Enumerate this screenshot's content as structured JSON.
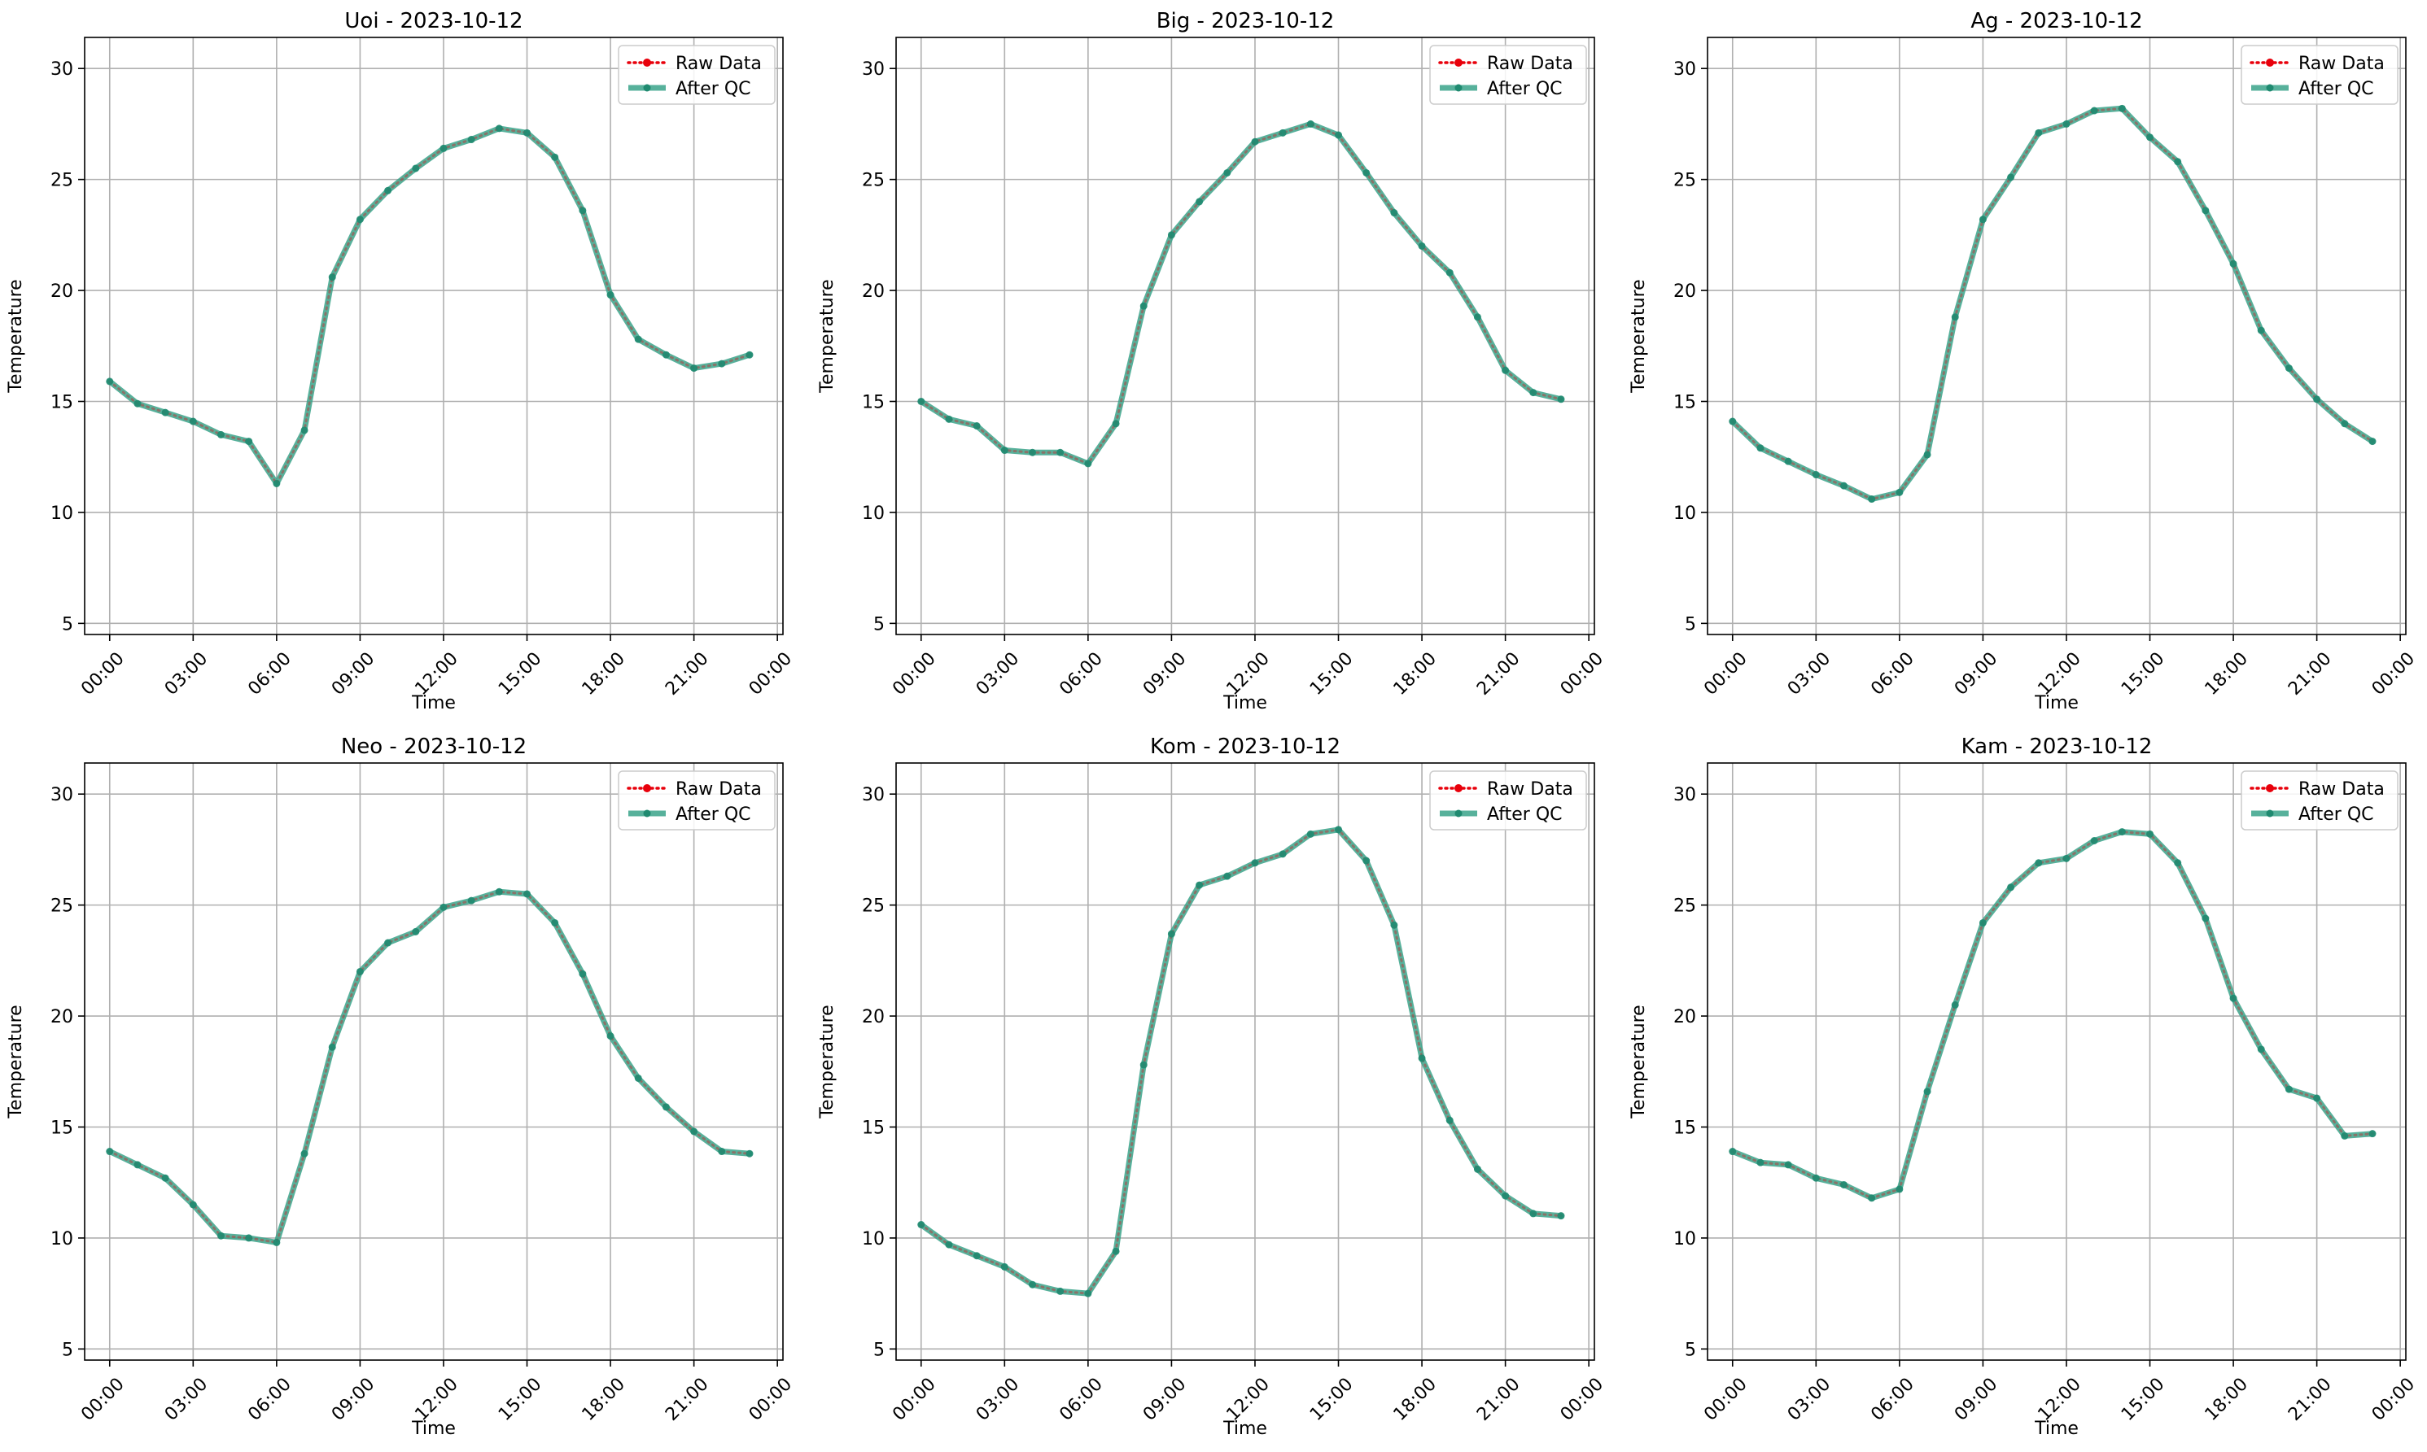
{
  "colors": {
    "raw": "#e8000b",
    "qc": "#3aa38a",
    "qc_marker": "#1f8a70",
    "grid": "#b0b0b0",
    "axes": "#000000"
  },
  "chart_data": [
    {
      "type": "line",
      "title": "Uoi - 2023-10-12",
      "xlabel": "Time",
      "ylabel": "Temperature",
      "ylim": [
        4.5,
        31.4
      ],
      "yticks": [
        5,
        10,
        15,
        20,
        25,
        30
      ],
      "xlim": [
        -0.9,
        24.2
      ],
      "x_tick_positions": [
        0,
        3,
        6,
        9,
        12,
        15,
        18,
        21,
        24
      ],
      "x_tick_labels": [
        "00:00",
        "03:00",
        "06:00",
        "09:00",
        "12:00",
        "15:00",
        "18:00",
        "21:00",
        "00:00"
      ],
      "grid": true,
      "legend_position": "top-right",
      "series": [
        {
          "name": "Raw Data",
          "style": "dotted",
          "x": [
            0,
            1,
            2,
            3,
            4,
            5,
            6,
            7,
            8,
            9,
            10,
            11,
            12,
            13,
            14,
            15,
            16,
            17,
            18,
            19,
            20,
            21,
            22,
            23
          ],
          "values": [
            15.9,
            14.9,
            14.5,
            14.1,
            13.5,
            13.2,
            11.3,
            13.7,
            20.6,
            23.2,
            24.5,
            25.5,
            26.4,
            26.8,
            27.3,
            27.1,
            26.0,
            23.6,
            19.8,
            17.8,
            17.1,
            16.5,
            16.7,
            17.1
          ]
        },
        {
          "name": "After QC",
          "style": "solid",
          "x": [
            0,
            1,
            2,
            3,
            4,
            5,
            6,
            7,
            8,
            9,
            10,
            11,
            12,
            13,
            14,
            15,
            16,
            17,
            18,
            19,
            20,
            21,
            22,
            23
          ],
          "values": [
            15.9,
            14.9,
            14.5,
            14.1,
            13.5,
            13.2,
            11.3,
            13.7,
            20.6,
            23.2,
            24.5,
            25.5,
            26.4,
            26.8,
            27.3,
            27.1,
            26.0,
            23.6,
            19.8,
            17.8,
            17.1,
            16.5,
            16.7,
            17.1
          ]
        }
      ]
    },
    {
      "type": "line",
      "title": "Big - 2023-10-12",
      "xlabel": "Time",
      "ylabel": "Temperature",
      "ylim": [
        4.5,
        31.4
      ],
      "yticks": [
        5,
        10,
        15,
        20,
        25,
        30
      ],
      "xlim": [
        -0.9,
        24.2
      ],
      "x_tick_positions": [
        0,
        3,
        6,
        9,
        12,
        15,
        18,
        21,
        24
      ],
      "x_tick_labels": [
        "00:00",
        "03:00",
        "06:00",
        "09:00",
        "12:00",
        "15:00",
        "18:00",
        "21:00",
        "00:00"
      ],
      "grid": true,
      "legend_position": "top-right",
      "series": [
        {
          "name": "Raw Data",
          "style": "dotted",
          "x": [
            0,
            1,
            2,
            3,
            4,
            5,
            6,
            7,
            8,
            9,
            10,
            11,
            12,
            13,
            14,
            15,
            16,
            17,
            18,
            19,
            20,
            21,
            22,
            23
          ],
          "values": [
            15.0,
            14.2,
            13.9,
            12.8,
            12.7,
            12.7,
            12.2,
            14.0,
            19.3,
            22.5,
            24.0,
            25.3,
            26.7,
            27.1,
            27.5,
            27.0,
            25.3,
            23.5,
            22.0,
            20.8,
            18.8,
            16.4,
            15.4,
            15.1
          ]
        },
        {
          "name": "After QC",
          "style": "solid",
          "x": [
            0,
            1,
            2,
            3,
            4,
            5,
            6,
            7,
            8,
            9,
            10,
            11,
            12,
            13,
            14,
            15,
            16,
            17,
            18,
            19,
            20,
            21,
            22,
            23
          ],
          "values": [
            15.0,
            14.2,
            13.9,
            12.8,
            12.7,
            12.7,
            12.2,
            14.0,
            19.3,
            22.5,
            24.0,
            25.3,
            26.7,
            27.1,
            27.5,
            27.0,
            25.3,
            23.5,
            22.0,
            20.8,
            18.8,
            16.4,
            15.4,
            15.1
          ]
        }
      ]
    },
    {
      "type": "line",
      "title": "Ag - 2023-10-12",
      "xlabel": "Time",
      "ylabel": "Temperature",
      "ylim": [
        4.5,
        31.4
      ],
      "yticks": [
        5,
        10,
        15,
        20,
        25,
        30
      ],
      "xlim": [
        -0.9,
        24.2
      ],
      "x_tick_positions": [
        0,
        3,
        6,
        9,
        12,
        15,
        18,
        21,
        24
      ],
      "x_tick_labels": [
        "00:00",
        "03:00",
        "06:00",
        "09:00",
        "12:00",
        "15:00",
        "18:00",
        "21:00",
        "00:00"
      ],
      "grid": true,
      "legend_position": "top-right",
      "series": [
        {
          "name": "Raw Data",
          "style": "dotted",
          "x": [
            0,
            1,
            2,
            3,
            4,
            5,
            6,
            7,
            8,
            9,
            10,
            11,
            12,
            13,
            14,
            15,
            16,
            17,
            18,
            19,
            20,
            21,
            22,
            23
          ],
          "values": [
            14.1,
            12.9,
            12.3,
            11.7,
            11.2,
            10.6,
            10.9,
            12.6,
            18.8,
            23.2,
            25.1,
            27.1,
            27.5,
            28.1,
            28.2,
            26.9,
            25.8,
            23.6,
            21.2,
            18.2,
            16.5,
            15.1,
            14.0,
            13.2
          ]
        },
        {
          "name": "After QC",
          "style": "solid",
          "x": [
            0,
            1,
            2,
            3,
            4,
            5,
            6,
            7,
            8,
            9,
            10,
            11,
            12,
            13,
            14,
            15,
            16,
            17,
            18,
            19,
            20,
            21,
            22,
            23
          ],
          "values": [
            14.1,
            12.9,
            12.3,
            11.7,
            11.2,
            10.6,
            10.9,
            12.6,
            18.8,
            23.2,
            25.1,
            27.1,
            27.5,
            28.1,
            28.2,
            26.9,
            25.8,
            23.6,
            21.2,
            18.2,
            16.5,
            15.1,
            14.0,
            13.2
          ]
        }
      ]
    },
    {
      "type": "line",
      "title": "Neo - 2023-10-12",
      "xlabel": "Time",
      "ylabel": "Temperature",
      "ylim": [
        4.5,
        31.4
      ],
      "yticks": [
        5,
        10,
        15,
        20,
        25,
        30
      ],
      "xlim": [
        -0.9,
        24.2
      ],
      "x_tick_positions": [
        0,
        3,
        6,
        9,
        12,
        15,
        18,
        21,
        24
      ],
      "x_tick_labels": [
        "00:00",
        "03:00",
        "06:00",
        "09:00",
        "12:00",
        "15:00",
        "18:00",
        "21:00",
        "00:00"
      ],
      "grid": true,
      "legend_position": "top-right",
      "series": [
        {
          "name": "Raw Data",
          "style": "dotted",
          "x": [
            0,
            1,
            2,
            3,
            4,
            5,
            6,
            7,
            8,
            9,
            10,
            11,
            12,
            13,
            14,
            15,
            16,
            17,
            18,
            19,
            20,
            21,
            22,
            23
          ],
          "values": [
            13.9,
            13.3,
            12.7,
            11.5,
            10.1,
            10.0,
            9.8,
            13.8,
            18.6,
            22.0,
            23.3,
            23.8,
            24.9,
            25.2,
            25.6,
            25.5,
            24.2,
            21.9,
            19.1,
            17.2,
            15.9,
            14.8,
            13.9,
            13.8
          ]
        },
        {
          "name": "After QC",
          "style": "solid",
          "x": [
            0,
            1,
            2,
            3,
            4,
            5,
            6,
            7,
            8,
            9,
            10,
            11,
            12,
            13,
            14,
            15,
            16,
            17,
            18,
            19,
            20,
            21,
            22,
            23
          ],
          "values": [
            13.9,
            13.3,
            12.7,
            11.5,
            10.1,
            10.0,
            9.8,
            13.8,
            18.6,
            22.0,
            23.3,
            23.8,
            24.9,
            25.2,
            25.6,
            25.5,
            24.2,
            21.9,
            19.1,
            17.2,
            15.9,
            14.8,
            13.9,
            13.8
          ]
        }
      ]
    },
    {
      "type": "line",
      "title": "Kom - 2023-10-12",
      "xlabel": "Time",
      "ylabel": "Temperature",
      "ylim": [
        4.5,
        31.4
      ],
      "yticks": [
        5,
        10,
        15,
        20,
        25,
        30
      ],
      "xlim": [
        -0.9,
        24.2
      ],
      "x_tick_positions": [
        0,
        3,
        6,
        9,
        12,
        15,
        18,
        21,
        24
      ],
      "x_tick_labels": [
        "00:00",
        "03:00",
        "06:00",
        "09:00",
        "12:00",
        "15:00",
        "18:00",
        "21:00",
        "00:00"
      ],
      "grid": true,
      "legend_position": "top-right",
      "series": [
        {
          "name": "Raw Data",
          "style": "dotted",
          "x": [
            0,
            1,
            2,
            3,
            4,
            5,
            6,
            7,
            8,
            9,
            10,
            11,
            12,
            13,
            14,
            15,
            16,
            17,
            18,
            19,
            20,
            21,
            22,
            23
          ],
          "values": [
            10.6,
            9.7,
            9.2,
            8.7,
            7.9,
            7.6,
            7.5,
            9.4,
            17.8,
            23.7,
            25.9,
            26.3,
            26.9,
            27.3,
            28.2,
            28.4,
            27.0,
            24.1,
            18.1,
            15.3,
            13.1,
            11.9,
            11.1,
            11.0
          ]
        },
        {
          "name": "After QC",
          "style": "solid",
          "x": [
            0,
            1,
            2,
            3,
            4,
            5,
            6,
            7,
            8,
            9,
            10,
            11,
            12,
            13,
            14,
            15,
            16,
            17,
            18,
            19,
            20,
            21,
            22,
            23
          ],
          "values": [
            10.6,
            9.7,
            9.2,
            8.7,
            7.9,
            7.6,
            7.5,
            9.4,
            17.8,
            23.7,
            25.9,
            26.3,
            26.9,
            27.3,
            28.2,
            28.4,
            27.0,
            24.1,
            18.1,
            15.3,
            13.1,
            11.9,
            11.1,
            11.0
          ]
        }
      ]
    },
    {
      "type": "line",
      "title": "Kam - 2023-10-12",
      "xlabel": "Time",
      "ylabel": "Temperature",
      "ylim": [
        4.5,
        31.4
      ],
      "yticks": [
        5,
        10,
        15,
        20,
        25,
        30
      ],
      "xlim": [
        -0.9,
        24.2
      ],
      "x_tick_positions": [
        0,
        3,
        6,
        9,
        12,
        15,
        18,
        21,
        24
      ],
      "x_tick_labels": [
        "00:00",
        "03:00",
        "06:00",
        "09:00",
        "12:00",
        "15:00",
        "18:00",
        "21:00",
        "00:00"
      ],
      "grid": true,
      "legend_position": "top-right",
      "series": [
        {
          "name": "Raw Data",
          "style": "dotted",
          "x": [
            0,
            1,
            2,
            3,
            4,
            5,
            6,
            7,
            8,
            9,
            10,
            11,
            12,
            13,
            14,
            15,
            16,
            17,
            18,
            19,
            20,
            21,
            22,
            23
          ],
          "values": [
            13.9,
            13.4,
            13.3,
            12.7,
            12.4,
            11.8,
            12.2,
            16.6,
            20.5,
            24.2,
            25.8,
            26.9,
            27.1,
            27.9,
            28.3,
            28.2,
            26.9,
            24.4,
            20.8,
            18.5,
            16.7,
            16.3,
            14.6,
            14.7
          ]
        },
        {
          "name": "After QC",
          "style": "solid",
          "x": [
            0,
            1,
            2,
            3,
            4,
            5,
            6,
            7,
            8,
            9,
            10,
            11,
            12,
            13,
            14,
            15,
            16,
            17,
            18,
            19,
            20,
            21,
            22,
            23
          ],
          "values": [
            13.9,
            13.4,
            13.3,
            12.7,
            12.4,
            11.8,
            12.2,
            16.6,
            20.5,
            24.2,
            25.8,
            26.9,
            27.1,
            27.9,
            28.3,
            28.2,
            26.9,
            24.4,
            20.8,
            18.5,
            16.7,
            16.3,
            14.6,
            14.7
          ]
        }
      ]
    }
  ]
}
